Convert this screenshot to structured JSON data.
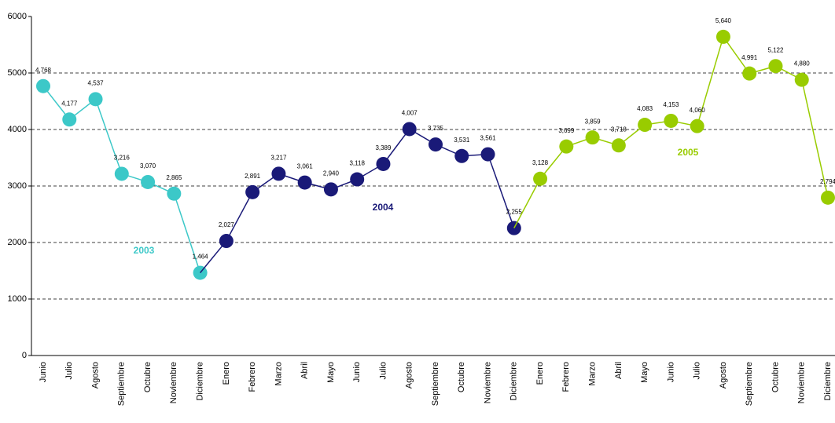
{
  "chart_data": {
    "type": "line",
    "categories": [
      "Junio",
      "Julio",
      "Agosto",
      "Septiembre",
      "Octubre",
      "Noviembre",
      "Diciembre",
      "Enero",
      "Febrero",
      "Marzo",
      "Abril",
      "Mayo",
      "Junio",
      "Julio",
      "Agosto",
      "Septiembre",
      "Octubre",
      "Noviembre",
      "Diciembre",
      "Enero",
      "Febrero",
      "Marzo",
      "Abril",
      "Mayo",
      "Junio",
      "Julio",
      "Agosto",
      "Septiembre",
      "Octubre",
      "Noviembre",
      "Diciembre"
    ],
    "series": [
      {
        "name": "2003",
        "color": "#3cc8c8",
        "values": [
          4768,
          4177,
          4537,
          3216,
          3070,
          2865,
          1464,
          null,
          null,
          null,
          null,
          null,
          null,
          null,
          null,
          null,
          null,
          null,
          null,
          null,
          null,
          null,
          null,
          null,
          null,
          null,
          null,
          null,
          null,
          null,
          null
        ],
        "value_labels": [
          "4,768",
          "4,177",
          "4,537",
          "3,216",
          "3,070",
          "2,865",
          "1,464",
          null,
          null,
          null,
          null,
          null,
          null,
          null,
          null,
          null,
          null,
          null,
          null,
          null,
          null,
          null,
          null,
          null,
          null,
          null,
          null,
          null,
          null,
          null,
          null
        ]
      },
      {
        "name": "2004",
        "color": "#1a1a78",
        "values": [
          null,
          null,
          null,
          null,
          null,
          null,
          null,
          2027,
          2891,
          3217,
          3061,
          2940,
          3118,
          3389,
          4007,
          3735,
          3531,
          3561,
          2255,
          null,
          null,
          null,
          null,
          null,
          null,
          null,
          null,
          null,
          null,
          null,
          null
        ],
        "value_labels": [
          null,
          null,
          null,
          null,
          null,
          null,
          null,
          "2,027",
          "2,891",
          "3,217",
          "3,061",
          "2,940",
          "3,118",
          "3,389",
          "4,007",
          "3,735",
          "3,531",
          "3,561",
          "2,255",
          null,
          null,
          null,
          null,
          null,
          null,
          null,
          null,
          null,
          null,
          null,
          null
        ]
      },
      {
        "name": "2005",
        "color": "#99cc00",
        "values": [
          null,
          null,
          null,
          null,
          null,
          null,
          null,
          null,
          null,
          null,
          null,
          null,
          null,
          null,
          null,
          null,
          null,
          null,
          null,
          3128,
          3699,
          3859,
          3718,
          4083,
          4153,
          4060,
          5640,
          4991,
          5122,
          4880,
          2794
        ],
        "value_labels": [
          null,
          null,
          null,
          null,
          null,
          null,
          null,
          null,
          null,
          null,
          null,
          null,
          null,
          null,
          null,
          null,
          null,
          null,
          null,
          "3,128",
          "3,699",
          "3,859",
          "3,718",
          "4,083",
          "4,153",
          "4,060",
          "5,640",
          "4,991",
          "5,122",
          "4,880",
          "2,794"
        ]
      }
    ],
    "ylim": [
      0,
      6000
    ],
    "yticks": [
      0,
      1000,
      2000,
      3000,
      4000,
      5000,
      6000
    ],
    "grid": true
  }
}
